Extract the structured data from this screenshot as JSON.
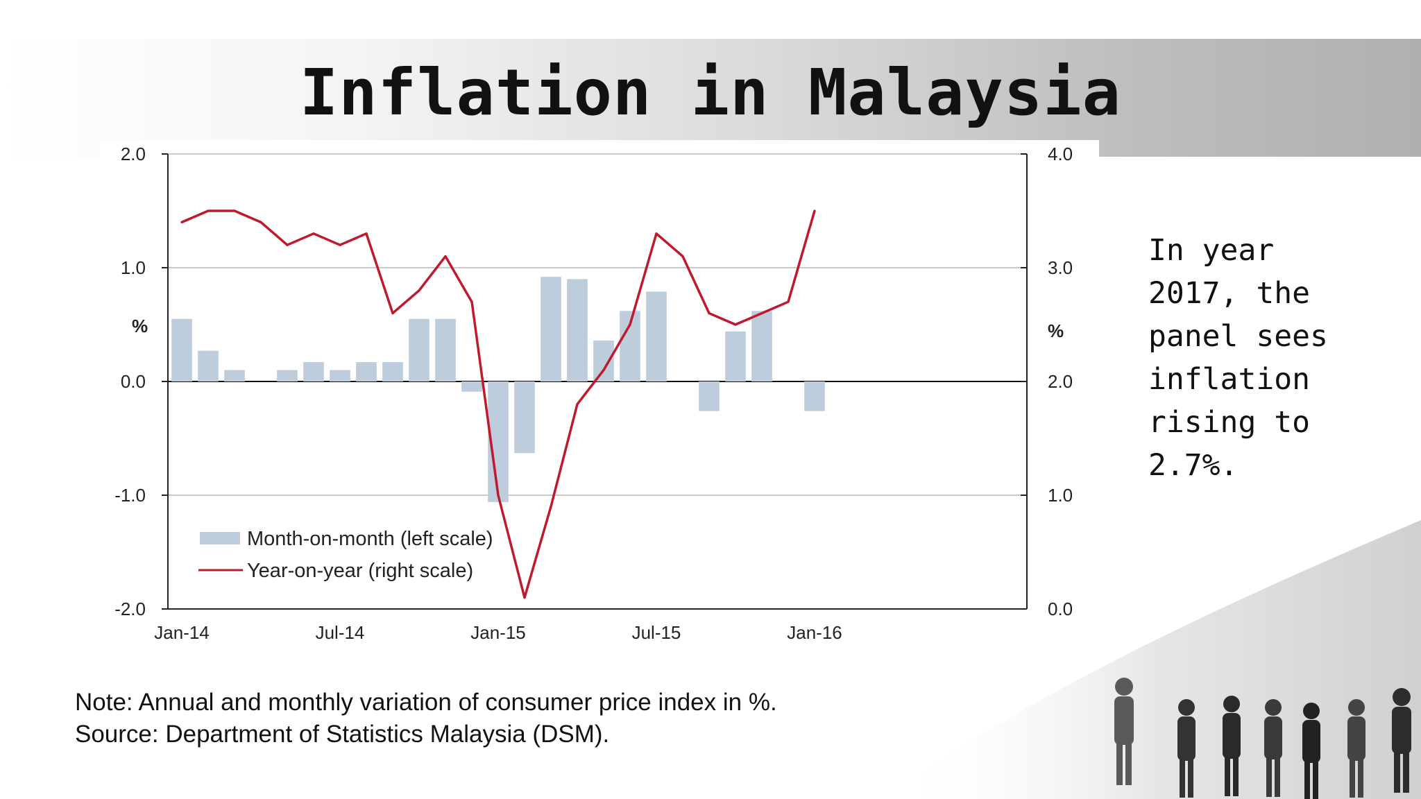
{
  "slide": {
    "title": "Inflation in Malaysia",
    "side_text": "In year 2017, the panel sees inflation rising to 2.7%.",
    "note_lines": [
      "Note: Annual and monthly variation of consumer price index in %.",
      "Source: Department of Statistics Malaysia (DSM)."
    ]
  },
  "chart_data": {
    "type": "bar",
    "title": "",
    "xlabel": "",
    "ylabel": "%",
    "y2label": "%",
    "ylim": [
      -2.0,
      2.0
    ],
    "y2lim": [
      0.0,
      4.0
    ],
    "yticks": [
      "2.0",
      "1.0",
      "0.0",
      "-1.0",
      "-2.0"
    ],
    "y2ticks": [
      "4.0",
      "3.0",
      "2.0",
      "1.0",
      "0.0"
    ],
    "x_tick_labels": [
      "Jan-14",
      "Jul-14",
      "Jan-15",
      "Jul-15",
      "Jan-16"
    ],
    "grid": true,
    "legend_position": "bottom-left",
    "categories": [
      "Jan-14",
      "Feb-14",
      "Mar-14",
      "Apr-14",
      "May-14",
      "Jun-14",
      "Jul-14",
      "Aug-14",
      "Sep-14",
      "Oct-14",
      "Nov-14",
      "Dec-14",
      "Jan-15",
      "Feb-15",
      "Mar-15",
      "Apr-15",
      "May-15",
      "Jun-15",
      "Jul-15",
      "Aug-15",
      "Sep-15",
      "Oct-15",
      "Nov-15",
      "Dec-15",
      "Jan-16"
    ],
    "series": [
      {
        "name": "Month-on-month (left scale)",
        "type": "bar",
        "axis": "left",
        "color": "#bdcddc",
        "values": [
          0.55,
          0.27,
          0.1,
          0.0,
          0.1,
          0.17,
          0.1,
          0.17,
          0.17,
          0.55,
          0.55,
          -0.09,
          -1.06,
          -0.63,
          0.92,
          0.9,
          0.36,
          0.62,
          0.79,
          0.0,
          -0.26,
          0.44,
          0.62,
          0.0,
          -0.26
        ]
      },
      {
        "name": "Year-on-year (right scale)",
        "type": "line",
        "axis": "right",
        "color": "#c0192d",
        "values": [
          3.4,
          3.5,
          3.5,
          3.4,
          3.2,
          3.3,
          3.2,
          3.3,
          2.6,
          2.8,
          3.1,
          2.7,
          1.0,
          0.1,
          0.9,
          1.8,
          2.1,
          2.5,
          3.3,
          3.1,
          2.6,
          2.5,
          2.6,
          2.7,
          3.5
        ]
      }
    ]
  }
}
